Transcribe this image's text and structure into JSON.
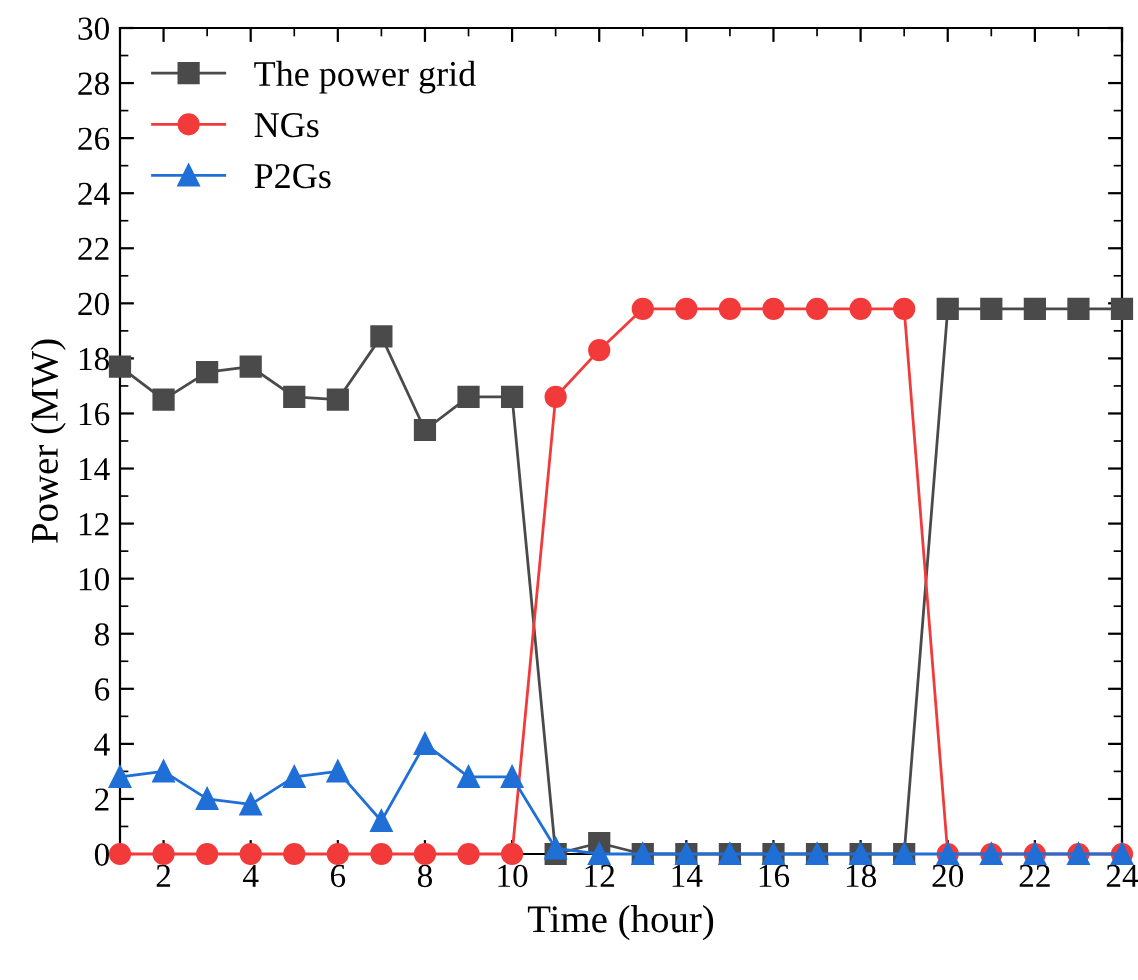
{
  "chart_data": {
    "type": "line",
    "xlabel": "Time (hour)",
    "ylabel": "Power (MW)",
    "x": [
      1,
      2,
      3,
      4,
      5,
      6,
      7,
      8,
      9,
      10,
      11,
      12,
      13,
      14,
      15,
      16,
      17,
      18,
      19,
      20,
      21,
      22,
      23,
      24
    ],
    "series": [
      {
        "name": "The power grid",
        "color": "#4a4a4a",
        "marker": "square",
        "values": [
          17.7,
          16.5,
          17.5,
          17.7,
          16.6,
          16.5,
          18.8,
          15.4,
          16.6,
          16.6,
          0,
          0.4,
          0,
          0,
          0,
          0,
          0,
          0,
          0,
          19.8,
          19.8,
          19.8,
          19.8,
          19.8
        ]
      },
      {
        "name": "NGs",
        "color": "#f23a3a",
        "marker": "circle",
        "values": [
          0,
          0,
          0,
          0,
          0,
          0,
          0,
          0,
          0,
          0,
          16.6,
          18.3,
          19.8,
          19.8,
          19.8,
          19.8,
          19.8,
          19.8,
          19.8,
          0,
          0,
          0,
          0,
          0
        ]
      },
      {
        "name": "P2Gs",
        "color": "#1f6fd6",
        "marker": "triangle",
        "values": [
          2.8,
          3.0,
          2.0,
          1.8,
          2.8,
          3.0,
          1.2,
          4.0,
          2.8,
          2.8,
          0.2,
          0,
          0,
          0,
          0,
          0,
          0,
          0,
          0,
          0,
          0,
          0,
          0,
          0
        ]
      }
    ],
    "xlim": [
      1,
      24
    ],
    "xticks": [
      2,
      4,
      6,
      8,
      10,
      12,
      14,
      16,
      18,
      20,
      22,
      24
    ],
    "ylim": [
      0,
      30
    ],
    "yticks": [
      0,
      2,
      4,
      6,
      8,
      10,
      12,
      14,
      16,
      18,
      20,
      22,
      24,
      26,
      28,
      30
    ],
    "grid": false,
    "legend": "top left",
    "line_style": "solid"
  }
}
